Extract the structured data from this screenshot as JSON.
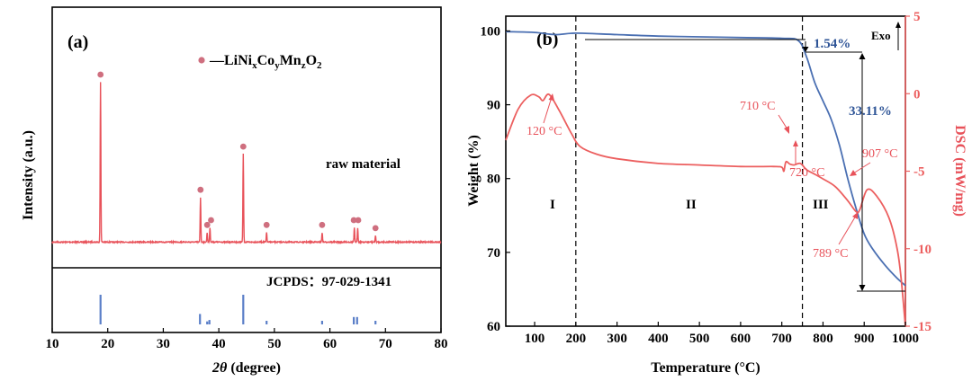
{
  "chart_data": [
    {
      "panel_label": "(a)",
      "type": "line",
      "title": "",
      "xlabel_italic": "2θ",
      "xlabel_rest": " (degree)",
      "ylabel": "Intensity (a.u.)",
      "xlim": [
        10,
        80
      ],
      "xticks": [
        10,
        20,
        30,
        40,
        50,
        60,
        70,
        80
      ],
      "legend": {
        "prefix": "—LiNi",
        "sub_x": "x",
        "co": "Co",
        "sub_y": "y",
        "mn": "Mn",
        "sub_z": "z",
        "o": "O",
        "sub_2": "2"
      },
      "series_label": "raw material",
      "reference_label": "JCPDS：97-029-1341",
      "colors": {
        "pattern": "#e8525a",
        "marker": "#cf6f7f",
        "reference": "#5b7fc8"
      },
      "peaks": [
        {
          "x": 18.7,
          "h": 1.0
        },
        {
          "x": 36.7,
          "h": 0.28
        },
        {
          "x": 37.9,
          "h": 0.06
        },
        {
          "x": 38.4,
          "h": 0.09
        },
        {
          "x": 44.4,
          "h": 0.55
        },
        {
          "x": 48.6,
          "h": 0.06
        },
        {
          "x": 58.6,
          "h": 0.06
        },
        {
          "x": 64.4,
          "h": 0.09
        },
        {
          "x": 65.0,
          "h": 0.09
        },
        {
          "x": 68.2,
          "h": 0.04
        }
      ],
      "markers": [
        18.7,
        36.7,
        37.9,
        38.6,
        44.4,
        48.6,
        58.6,
        64.3,
        65.1,
        68.2
      ],
      "reference_lines": [
        {
          "x": 18.7,
          "h": 1.0
        },
        {
          "x": 36.6,
          "h": 0.35
        },
        {
          "x": 37.9,
          "h": 0.1
        },
        {
          "x": 38.3,
          "h": 0.15
        },
        {
          "x": 44.4,
          "h": 1.0
        },
        {
          "x": 48.6,
          "h": 0.12
        },
        {
          "x": 58.6,
          "h": 0.12
        },
        {
          "x": 64.3,
          "h": 0.25
        },
        {
          "x": 64.9,
          "h": 0.25
        },
        {
          "x": 68.2,
          "h": 0.12
        }
      ]
    },
    {
      "panel_label": "(b)",
      "type": "line",
      "xlabel": "Temperature (°C)",
      "ylabel_left": "Weight (%)",
      "ylabel_right": "DSC (mW/mg)",
      "xlim": [
        30,
        1000
      ],
      "xticks": [
        100,
        200,
        300,
        400,
        500,
        600,
        700,
        800,
        900,
        1000
      ],
      "ylim_left": [
        60,
        102
      ],
      "yticks_left": [
        60,
        70,
        80,
        90,
        100
      ],
      "ylim_right": [
        -15,
        5
      ],
      "yticks_right": [
        -15,
        -10,
        -5,
        0,
        5
      ],
      "colors": {
        "tg": "#4a6fb2",
        "dsc": "#ec5f5f",
        "right_axis": "#ec5f5f"
      },
      "tg": {
        "x": [
          30,
          100,
          150,
          200,
          300,
          400,
          500,
          600,
          700,
          740,
          760,
          780,
          800,
          820,
          840,
          860,
          880,
          900,
          920,
          950,
          980,
          1000
        ],
        "y": [
          99.9,
          99.8,
          99.5,
          99.7,
          99.5,
          99.3,
          99.2,
          99.1,
          99.0,
          98.7,
          96.5,
          93.0,
          90.5,
          88.0,
          84.5,
          80.0,
          76.0,
          72.5,
          70.5,
          68.3,
          66.5,
          65.5
        ]
      },
      "dsc": {
        "x": [
          30,
          60,
          90,
          110,
          120,
          135,
          160,
          190,
          210,
          250,
          300,
          400,
          500,
          600,
          680,
          700,
          705,
          710,
          720,
          730,
          745,
          760,
          780,
          800,
          830,
          860,
          880,
          889,
          907,
          930,
          960,
          980,
          990,
          1000
        ],
        "y": [
          -3.0,
          -1.0,
          -0.1,
          -0.2,
          -0.45,
          -0.05,
          -1.1,
          -2.6,
          -3.4,
          -3.9,
          -4.2,
          -4.5,
          -4.6,
          -4.7,
          -4.7,
          -4.75,
          -5.0,
          -4.4,
          -4.55,
          -4.6,
          -4.5,
          -4.9,
          -5.2,
          -5.5,
          -6.0,
          -6.9,
          -7.6,
          -7.5,
          -6.2,
          -6.6,
          -8.0,
          -10.0,
          -12.0,
          -15.0
        ]
      },
      "annotations": {
        "peak120": "120 °C",
        "peak710": "710 °C",
        "peak720": "720 °C",
        "peak789": "789 °C",
        "peak907": "907 °C",
        "loss1": "1.54%",
        "loss2": "33.11%",
        "exo": "Exo",
        "region1": "I",
        "region2": "II",
        "region3": "III"
      },
      "dividers": [
        200,
        750
      ]
    }
  ]
}
